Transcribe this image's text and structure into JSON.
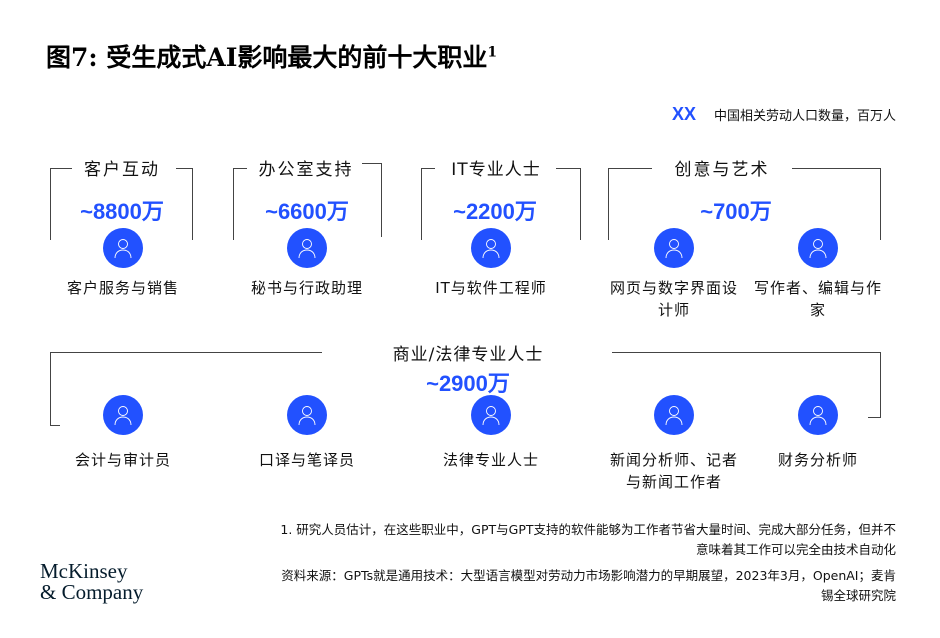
{
  "title": "图7: 受生成式AI影响最大的前十大职业",
  "title_footnote_mark": "1",
  "legend": {
    "marker": "XX",
    "text": "中国相关劳动人口数量，百万人"
  },
  "accent_color": "#2251FF",
  "groups": [
    {
      "name": "客户互动",
      "value": "~8800万"
    },
    {
      "name": "办公室支持",
      "value": "~6600万"
    },
    {
      "name": "IT专业人士",
      "value": "~2200万"
    },
    {
      "name": "创意与艺术",
      "value": "~700万"
    },
    {
      "name": "商业/法律专业人士",
      "value": "~2900万"
    }
  ],
  "occupations_row1": [
    {
      "label": "客户服务与销售",
      "icon": "headset-person-icon"
    },
    {
      "label": "秘书与行政助理",
      "icon": "person-briefcase-icon"
    },
    {
      "label": "IT与软件工程师",
      "icon": "head-chip-icon"
    },
    {
      "label": "网页与数字界面设计师",
      "icon": "presenter-board-icon"
    },
    {
      "label": "写作者、编辑与作家",
      "icon": "pen-nib-icon"
    }
  ],
  "occupations_row2": [
    {
      "label": "会计与审计员",
      "icon": "invoice-icon"
    },
    {
      "label": "口译与笔译员",
      "icon": "two-people-icon"
    },
    {
      "label": "法律专业人士",
      "icon": "scales-icon"
    },
    {
      "label": "新闻分析师、记者与新闻工作者",
      "icon": "person-monitor-icon"
    },
    {
      "label": "财务分析师",
      "icon": "person-bar-chart-icon"
    }
  ],
  "footnote": "1. 研究人员估计，在这些职业中，GPT与GPT支持的软件能够为工作者节省大量时间、完成大部分任务，但并不意味着其工作可以完全由技术自动化",
  "source": "资料来源：GPTs就是通用技术：大型语言模型对劳动力市场影响潜力的早期展望，2023年3月，OpenAI；麦肯锡全球研究院",
  "logo": "McKinsey & Company"
}
